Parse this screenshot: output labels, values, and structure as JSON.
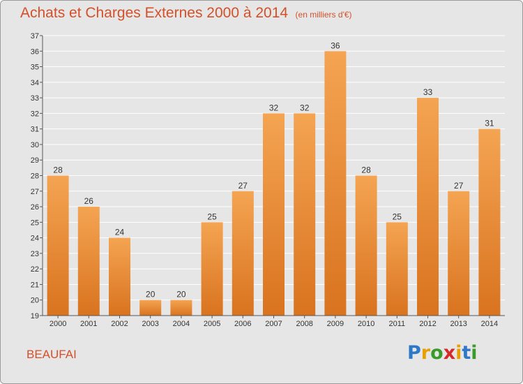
{
  "header": {
    "title": "Achats et Charges Externes 2000 à 2014",
    "subtitle": "(en milliers d'€)"
  },
  "footer": {
    "location": "BEAUFAI",
    "logo_text": "Proxiti",
    "logo_colors": [
      "#2e78c8",
      "#e8a000",
      "#3a9a2a",
      "#d42a2a",
      "#e8a000",
      "#2e78c8",
      "#3a9a2a"
    ]
  },
  "colors": {
    "bar_light": "#f4a452",
    "bar_dark": "#d9731f",
    "accent": "#d4502a",
    "grid": "#ffffff",
    "text": "#333333"
  },
  "chart_data": {
    "type": "bar",
    "title": "Achats et Charges Externes 2000 à 2014",
    "subtitle": "(en milliers d'€)",
    "categories": [
      "2000",
      "2001",
      "2002",
      "2003",
      "2004",
      "2005",
      "2006",
      "2007",
      "2008",
      "2009",
      "2010",
      "2011",
      "2012",
      "2013",
      "2014"
    ],
    "values": [
      28,
      26,
      24,
      20,
      20,
      25,
      27,
      32,
      32,
      36,
      28,
      25,
      33,
      27,
      31
    ],
    "data_labels": [
      "28",
      "26",
      "24",
      "20",
      "20",
      "25",
      "27",
      "32",
      "32",
      "36",
      "28",
      "25",
      "33",
      "27",
      "31"
    ],
    "ylim": [
      19,
      37
    ],
    "yticks": [
      19,
      20,
      21,
      22,
      23,
      24,
      25,
      26,
      27,
      28,
      29,
      30,
      31,
      32,
      33,
      34,
      35,
      36,
      37
    ],
    "grid": true,
    "xlabel": "",
    "ylabel": ""
  }
}
